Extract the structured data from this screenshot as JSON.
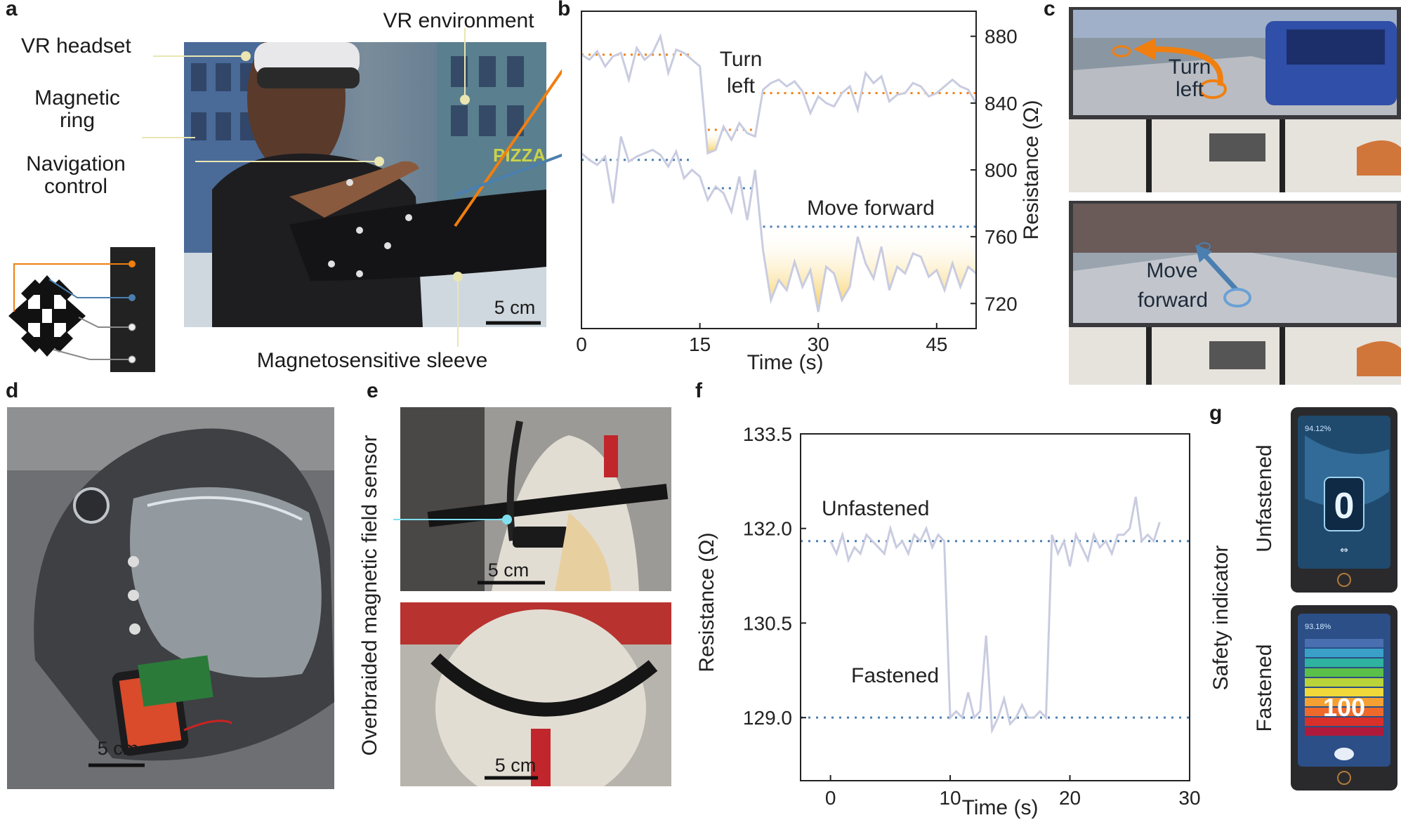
{
  "panels": {
    "a": {
      "letter": "a",
      "labels": {
        "vr_headset": "VR headset",
        "vr_environment": "VR environment",
        "magnetic_ring_1": "Magnetic",
        "magnetic_ring_2": "ring",
        "navigation_control_1": "Navigation",
        "navigation_control_2": "control",
        "sleeve": "Magnetosensitive sleeve",
        "scale": "5 cm"
      }
    },
    "b": {
      "letter": "b"
    },
    "c": {
      "letter": "c",
      "turn_left_1": "Turn",
      "turn_left_2": "left",
      "move_forward_1": "Move",
      "move_forward_2": "forward"
    },
    "d": {
      "letter": "d",
      "scale": "5 cm"
    },
    "e": {
      "letter": "e",
      "sensor_label": "Overbraided magnetic field sensor",
      "scale_top": "5 cm",
      "scale_bottom": "5 cm"
    },
    "f": {
      "letter": "f"
    },
    "g": {
      "letter": "g",
      "safety_indicator": "Safety indicator",
      "unfastened": "Unfastened",
      "fastened": "Fastened",
      "screen_top_pct": "94.12%",
      "screen_top_value": "0",
      "screen_bottom_pct": "93.18%",
      "screen_bottom_value": "100"
    }
  },
  "colors": {
    "orange": "#f07f10",
    "blue": "#4a7fb0",
    "trace": "#c9cce0",
    "fill_yellow": "#f7c94a"
  },
  "chart_data": [
    {
      "id": "b",
      "type": "line",
      "xlabel": "Time (s)",
      "ylabel": "Resistance (Ω)",
      "xlim": [
        0,
        50
      ],
      "ylim": [
        705,
        895
      ],
      "xticks": [
        0,
        15,
        30,
        45
      ],
      "yticks": [
        720,
        760,
        800,
        840,
        880
      ],
      "annotations": [
        "Turn",
        "left",
        "Move forward"
      ],
      "series": [
        {
          "color": "orange-ref",
          "x": [
            0,
            1,
            2,
            3,
            4,
            5,
            6,
            7,
            8,
            9,
            10,
            11,
            12,
            13,
            14,
            15,
            16,
            17,
            18,
            19,
            20,
            21,
            22,
            23,
            24,
            25,
            26,
            27,
            28,
            29,
            30,
            31,
            32,
            33,
            34,
            35,
            36,
            37,
            38,
            39,
            40,
            41,
            42,
            43,
            44,
            45,
            46,
            47,
            48,
            49,
            50
          ],
          "y": [
            869,
            866,
            871,
            862,
            868,
            870,
            854,
            873,
            866,
            870,
            880,
            858,
            872,
            870,
            866,
            862,
            810,
            812,
            826,
            818,
            828,
            822,
            820,
            848,
            852,
            854,
            850,
            853,
            847,
            834,
            844,
            840,
            838,
            846,
            850,
            836,
            858,
            852,
            856,
            841,
            845,
            846,
            852,
            850,
            844,
            846,
            850,
            854,
            850,
            848,
            840
          ]
        },
        {
          "color": "blue-ref",
          "x": [
            0,
            1,
            2,
            3,
            4,
            5,
            6,
            7,
            8,
            9,
            10,
            11,
            12,
            13,
            14,
            15,
            16,
            17,
            18,
            19,
            20,
            21,
            22,
            23,
            24,
            25,
            26,
            27,
            28,
            29,
            30,
            31,
            32,
            33,
            34,
            35,
            36,
            37,
            38,
            39,
            40,
            41,
            42,
            43,
            44,
            45,
            46,
            47,
            48,
            49,
            50
          ],
          "y": [
            810,
            806,
            803,
            808,
            780,
            820,
            805,
            808,
            810,
            812,
            809,
            802,
            811,
            795,
            800,
            796,
            782,
            790,
            786,
            775,
            796,
            770,
            800,
            752,
            722,
            734,
            728,
            745,
            730,
            740,
            715,
            742,
            738,
            722,
            730,
            760,
            744,
            735,
            754,
            728,
            742,
            738,
            750,
            748,
            736,
            740,
            728,
            744,
            730,
            742,
            738
          ]
        }
      ],
      "reference_lines": [
        {
          "color": "orange-ref",
          "y": 869,
          "x": [
            0,
            14
          ]
        },
        {
          "color": "orange-ref",
          "y": 824,
          "x": [
            16,
            22
          ]
        },
        {
          "color": "orange-ref",
          "y": 846,
          "x": [
            23,
            50
          ]
        },
        {
          "color": "blue-ref",
          "y": 806,
          "x": [
            0,
            14
          ]
        },
        {
          "color": "blue-ref",
          "y": 789,
          "x": [
            16,
            22
          ]
        },
        {
          "color": "blue-ref",
          "y": 766,
          "x": [
            23,
            50
          ]
        }
      ]
    },
    {
      "id": "f",
      "type": "line",
      "xlabel": "Time (s)",
      "ylabel": "Resistance (Ω)",
      "xlim": [
        -2.5,
        30
      ],
      "ylim": [
        128.0,
        133.5
      ],
      "xticks": [
        0,
        10,
        20,
        30
      ],
      "yticks": [
        129.0,
        130.5,
        132.0,
        133.5
      ],
      "ytick_labels": [
        "129.0",
        "130.5",
        "132.0",
        "133.5"
      ],
      "annotations": [
        "Unfastened",
        "Fastened"
      ],
      "series": [
        {
          "x": [
            0,
            0.5,
            1,
            1.5,
            2,
            2.5,
            3,
            3.5,
            4,
            4.5,
            5,
            5.5,
            6,
            6.5,
            7,
            7.5,
            8,
            8.5,
            9,
            9.5,
            10,
            10.5,
            11,
            11.5,
            12,
            12.5,
            13,
            13.5,
            14,
            14.5,
            15,
            15.5,
            16,
            16.5,
            17,
            17.5,
            18,
            18.5,
            19,
            19.5,
            20,
            20.5,
            21,
            21.5,
            22,
            22.5,
            23,
            23.5,
            24,
            24.5,
            25,
            25.5,
            26,
            26.5,
            27,
            27.5
          ],
          "y": [
            131.8,
            131.6,
            131.9,
            131.5,
            131.7,
            131.6,
            131.9,
            131.8,
            131.7,
            131.6,
            132.0,
            131.7,
            131.8,
            131.6,
            131.9,
            131.8,
            132.0,
            131.7,
            131.9,
            131.8,
            129.0,
            129.1,
            129.0,
            129.4,
            129.0,
            129.1,
            130.3,
            128.8,
            129.0,
            129.3,
            128.9,
            129.0,
            129.2,
            129.0,
            129.0,
            129.1,
            129.0,
            131.9,
            131.6,
            131.8,
            131.4,
            131.9,
            131.7,
            131.5,
            131.9,
            131.7,
            131.8,
            131.6,
            131.9,
            131.9,
            132.0,
            132.5,
            131.8,
            131.9,
            131.8,
            132.1
          ]
        }
      ],
      "reference_lines": [
        {
          "y": 131.8,
          "label": "Unfastened"
        },
        {
          "y": 129.0,
          "label": "Fastened"
        }
      ]
    }
  ]
}
